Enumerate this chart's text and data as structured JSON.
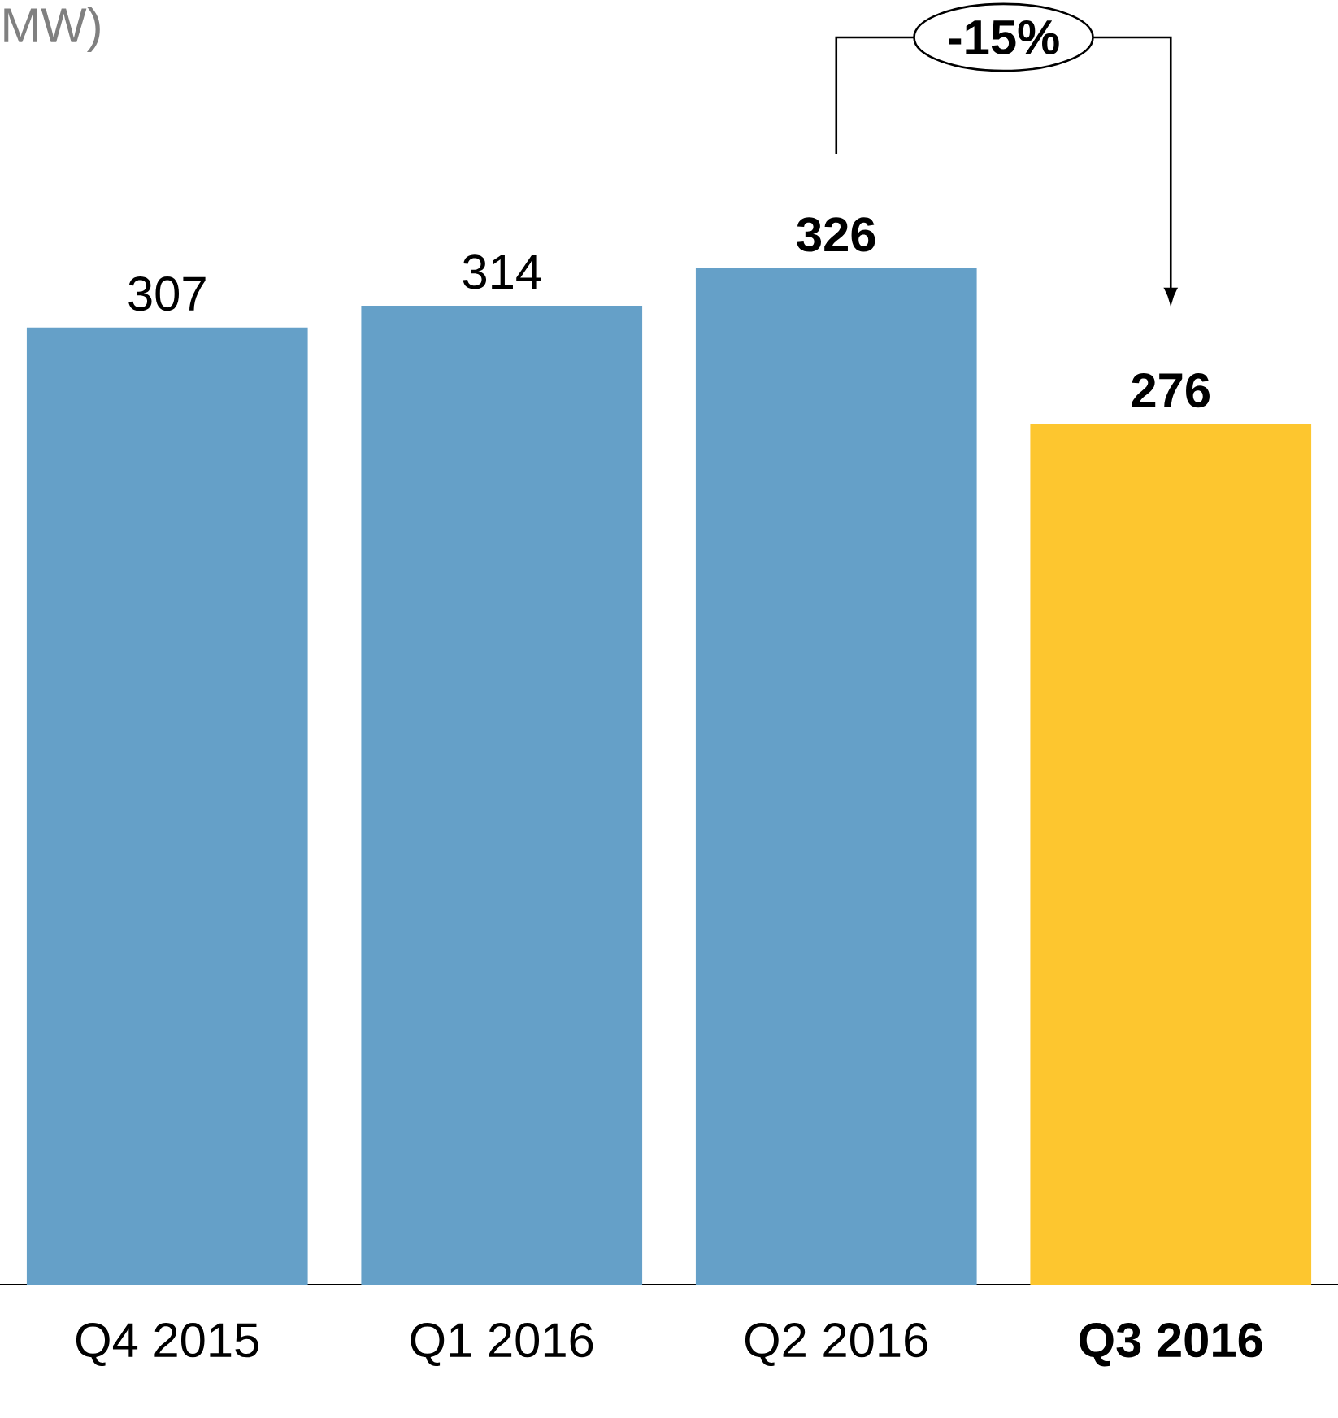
{
  "chart_data": {
    "type": "bar",
    "title": "MW)",
    "categories": [
      "Q4 2015",
      "Q1 2016",
      "Q2 2016",
      "**Q3 2016**"
    ],
    "values": [
      307,
      314,
      326,
      276
    ],
    "colors": [
      "#65a0c8",
      "#65a0c8",
      "#65a0c8",
      "#fdc62f"
    ],
    "value_labels": [
      "307",
      "314",
      "**326**",
      "**276**"
    ],
    "annotations": [
      "-15%"
    ]
  }
}
